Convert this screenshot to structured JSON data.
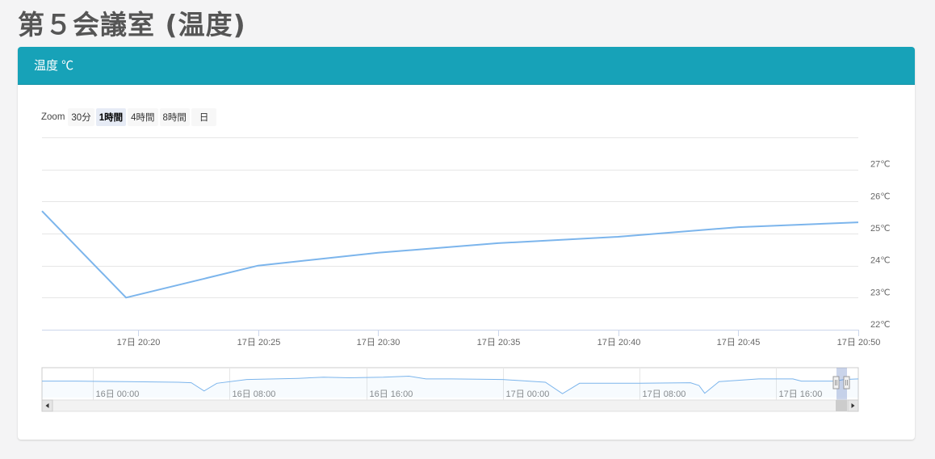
{
  "page": {
    "title": "第５会議室 (温度)"
  },
  "panel": {
    "title": "温度 ℃"
  },
  "zoom": {
    "label": "Zoom",
    "buttons": [
      {
        "label": "30分",
        "active": false
      },
      {
        "label": "1時間",
        "active": true
      },
      {
        "label": "4時間",
        "active": false
      },
      {
        "label": "8時間",
        "active": false
      },
      {
        "label": "日",
        "active": false
      }
    ]
  },
  "chart_data": {
    "type": "line",
    "title": "",
    "xlabel": "",
    "ylabel": "",
    "y_unit": "℃",
    "ylim": [
      22,
      28
    ],
    "yticks": [
      22,
      23,
      24,
      25,
      26,
      27
    ],
    "ytick_labels": [
      "22℃",
      "23℃",
      "24℃",
      "25℃",
      "26℃",
      "27℃"
    ],
    "xlim": [
      "17日 20:16",
      "17日 20:50"
    ],
    "xticks": [
      "17日 20:20",
      "17日 20:25",
      "17日 20:30",
      "17日 20:35",
      "17日 20:40",
      "17日 20:45",
      "17日 20:50"
    ],
    "grid": true,
    "series": [
      {
        "color": "#7cb5ec",
        "points": [
          {
            "x": "17日 20:16",
            "y": 25.7
          },
          {
            "x": "17日 20:19:30",
            "y": 23.0
          },
          {
            "x": "17日 20:25",
            "y": 24.0
          },
          {
            "x": "17日 20:30",
            "y": 24.4
          },
          {
            "x": "17日 20:35",
            "y": 24.7
          },
          {
            "x": "17日 20:40",
            "y": 24.9
          },
          {
            "x": "17日 20:45",
            "y": 25.2
          },
          {
            "x": "17日 20:50",
            "y": 25.35
          }
        ]
      }
    ],
    "navigator": {
      "xlim": [
        "15日 21:00",
        "17日 20:50"
      ],
      "xticks": [
        "16日 00:00",
        "16日 08:00",
        "16日 16:00",
        "17日 00:00",
        "17日 08:00",
        "17日 16:00"
      ],
      "ylim": [
        22,
        27
      ],
      "series": [
        {
          "x": "15日 21:00",
          "y": 25.0
        },
        {
          "x": "15日 23:00",
          "y": 25.0
        },
        {
          "x": "16日 02:00",
          "y": 24.9
        },
        {
          "x": "16日 05:00",
          "y": 24.8
        },
        {
          "x": "16日 05:45",
          "y": 24.7
        },
        {
          "x": "16日 06:30",
          "y": 23.2
        },
        {
          "x": "16日 07:15",
          "y": 24.6
        },
        {
          "x": "16日 09:00",
          "y": 25.3
        },
        {
          "x": "16日 12:00",
          "y": 25.5
        },
        {
          "x": "16日 13:30",
          "y": 25.7
        },
        {
          "x": "16日 15:00",
          "y": 25.6
        },
        {
          "x": "16日 17:00",
          "y": 25.7
        },
        {
          "x": "16日 18:30",
          "y": 25.9
        },
        {
          "x": "16日 19:30",
          "y": 25.4
        },
        {
          "x": "16日 21:00",
          "y": 25.4
        },
        {
          "x": "17日 00:00",
          "y": 25.3
        },
        {
          "x": "17日 01:30",
          "y": 25.0
        },
        {
          "x": "17日 02:30",
          "y": 24.8
        },
        {
          "x": "17日 03:30",
          "y": 22.7
        },
        {
          "x": "17日 04:30",
          "y": 24.6
        },
        {
          "x": "17日 08:00",
          "y": 24.6
        },
        {
          "x": "17日 11:00",
          "y": 24.7
        },
        {
          "x": "17日 11:30",
          "y": 24.2
        },
        {
          "x": "17日 11:50",
          "y": 22.8
        },
        {
          "x": "17日 12:40",
          "y": 24.9
        },
        {
          "x": "17日 15:00",
          "y": 25.4
        },
        {
          "x": "17日 17:00",
          "y": 25.4
        },
        {
          "x": "17日 17:30",
          "y": 25.0
        },
        {
          "x": "17日 19:30",
          "y": 25.0
        },
        {
          "x": "17日 20:00",
          "y": 25.3
        },
        {
          "x": "17日 20:50",
          "y": 25.4
        }
      ]
    }
  }
}
